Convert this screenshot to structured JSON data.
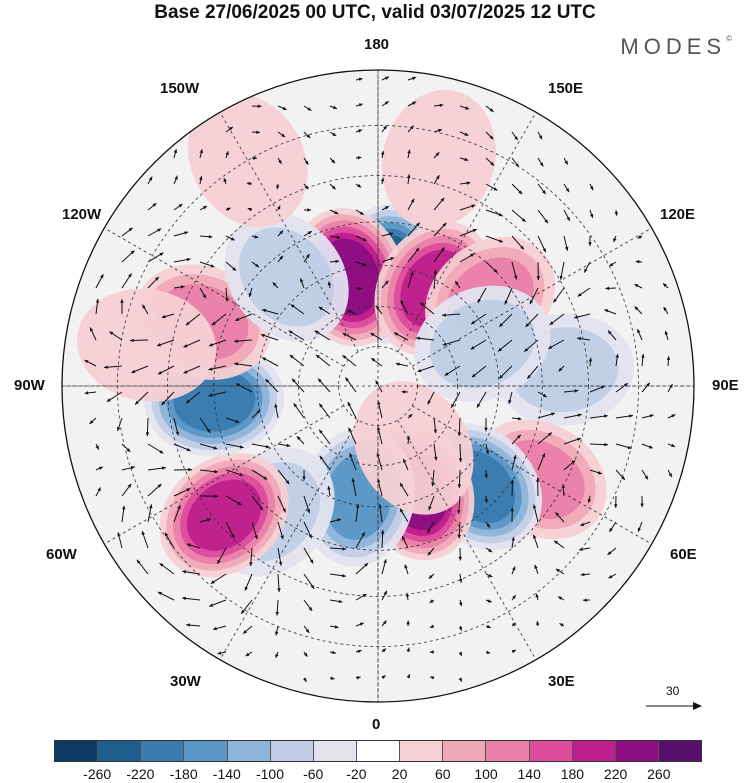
{
  "title": "Base 27/06/2025 00 UTC, valid 03/07/2025 12 UTC",
  "brand": "MODES",
  "brand_mark": "©",
  "longitude_labels": {
    "top": "180",
    "bottom": "0",
    "left": "90W",
    "right": "90E",
    "upper_left_1": "150W",
    "upper_left_2": "120W",
    "lower_left_1": "60W",
    "lower_left_2": "30W",
    "upper_right_1": "150E",
    "upper_right_2": "120E",
    "lower_right_1": "60E",
    "lower_right_2": "30E"
  },
  "vector_scale_label": "30",
  "colorbar": {
    "ticks": [
      "-260",
      "-220",
      "-180",
      "-140",
      "-100",
      "-60",
      "-20",
      "20",
      "60",
      "100",
      "140",
      "180",
      "220",
      "260"
    ],
    "colors": [
      "#0d3b66",
      "#1f5f8f",
      "#3a7bb0",
      "#5b97c6",
      "#8fb4d9",
      "#bfcde6",
      "#e3e3f0",
      "#ffffff",
      "#f6d0d4",
      "#f0a9b8",
      "#ea80a8",
      "#dd4d9e",
      "#bd1f8c",
      "#8c0f82",
      "#5a0f6f"
    ]
  },
  "anomalies": [
    {
      "lon": 175,
      "lat": 62,
      "v": -250
    },
    {
      "lon": -165,
      "lat": 62,
      "v": 230
    },
    {
      "lon": 150,
      "lat": 62,
      "v": 180
    },
    {
      "lon": 128,
      "lat": 55,
      "v": 100
    },
    {
      "lon": 95,
      "lat": 45,
      "v": -80
    },
    {
      "lon": 112,
      "lat": 62,
      "v": -60
    },
    {
      "lon": 60,
      "lat": 45,
      "v": 130
    },
    {
      "lon": 45,
      "lat": 55,
      "v": -210
    },
    {
      "lon": 20,
      "lat": 62,
      "v": 220
    },
    {
      "lon": -10,
      "lat": 62,
      "v": -170
    },
    {
      "lon": -40,
      "lat": 50,
      "v": -80
    },
    {
      "lon": -50,
      "lat": 42,
      "v": 190
    },
    {
      "lon": -85,
      "lat": 50,
      "v": -190
    },
    {
      "lon": -110,
      "lat": 45,
      "v": 120
    },
    {
      "lon": -140,
      "lat": 55,
      "v": -60
    },
    {
      "lon": -150,
      "lat": 30,
      "v": 40
    },
    {
      "lon": 165,
      "lat": 35,
      "v": 40
    },
    {
      "lon": 30,
      "lat": 72,
      "v": 40
    },
    {
      "lon": -100,
      "lat": 35,
      "v": 50
    }
  ]
}
